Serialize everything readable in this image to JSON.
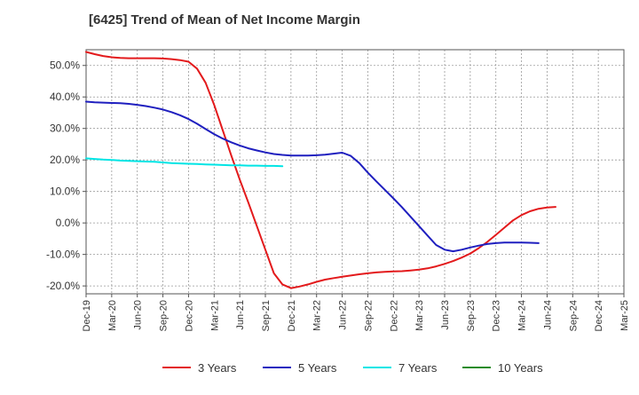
{
  "title": "[6425]  Trend of Mean of Net Income Margin",
  "chart_data": {
    "type": "line",
    "title": "[6425]  Trend of Mean of Net Income Margin",
    "xlabel": "",
    "ylabel": "",
    "x_ticks": [
      "Dec-19",
      "Mar-20",
      "Jun-20",
      "Sep-20",
      "Dec-20",
      "Mar-21",
      "Jun-21",
      "Sep-21",
      "Dec-21",
      "Mar-22",
      "Jun-22",
      "Sep-22",
      "Dec-22",
      "Mar-23",
      "Jun-23",
      "Sep-23",
      "Dec-23",
      "Mar-24",
      "Jun-24",
      "Sep-24",
      "Dec-24",
      "Mar-25"
    ],
    "y_ticks": [
      {
        "value": 50,
        "label": "50.0%"
      },
      {
        "value": 40,
        "label": "40.0%"
      },
      {
        "value": 30,
        "label": "30.0%"
      },
      {
        "value": 20,
        "label": "20.0%"
      },
      {
        "value": 10,
        "label": "10.0%"
      },
      {
        "value": 0,
        "label": "0.0%"
      },
      {
        "value": -10,
        "label": "-10.0%"
      },
      {
        "value": -20,
        "label": "-20.0%"
      }
    ],
    "ylim": [
      -22.5,
      55
    ],
    "grid": true,
    "legend_position": "bottom",
    "series": [
      {
        "name": "3 Years",
        "color": "#e31a1c",
        "points": [
          [
            "Dec-19",
            54.3
          ],
          [
            "Jan-20",
            53.6
          ],
          [
            "Feb-20",
            53.0
          ],
          [
            "Mar-20",
            52.6
          ],
          [
            "Apr-20",
            52.4
          ],
          [
            "May-20",
            52.3
          ],
          [
            "Jun-20",
            52.3
          ],
          [
            "Jul-20",
            52.3
          ],
          [
            "Aug-20",
            52.3
          ],
          [
            "Sep-20",
            52.2
          ],
          [
            "Oct-20",
            52.0
          ],
          [
            "Nov-20",
            51.7
          ],
          [
            "Dec-20",
            51.2
          ],
          [
            "Jan-21",
            49.0
          ],
          [
            "Feb-21",
            44.5
          ],
          [
            "Mar-21",
            37.5
          ],
          [
            "Apr-21",
            29.5
          ],
          [
            "May-21",
            21.5
          ],
          [
            "Jun-21",
            13.8
          ],
          [
            "Jul-21",
            6.5
          ],
          [
            "Aug-21",
            -1.0
          ],
          [
            "Sep-21",
            -8.5
          ],
          [
            "Oct-21",
            -16.0
          ],
          [
            "Nov-21",
            -19.5
          ],
          [
            "Dec-21",
            -20.7
          ],
          [
            "Jan-22",
            -20.2
          ],
          [
            "Feb-22",
            -19.5
          ],
          [
            "Mar-22",
            -18.7
          ],
          [
            "Apr-22",
            -18.0
          ],
          [
            "May-22",
            -17.5
          ],
          [
            "Jun-22",
            -17.1
          ],
          [
            "Jul-22",
            -16.7
          ],
          [
            "Aug-22",
            -16.3
          ],
          [
            "Sep-22",
            -16.0
          ],
          [
            "Oct-22",
            -15.7
          ],
          [
            "Nov-22",
            -15.5
          ],
          [
            "Dec-22",
            -15.4
          ],
          [
            "Jan-23",
            -15.3
          ],
          [
            "Feb-23",
            -15.1
          ],
          [
            "Mar-23",
            -14.8
          ],
          [
            "Apr-23",
            -14.4
          ],
          [
            "May-23",
            -13.8
          ],
          [
            "Jun-23",
            -13.0
          ],
          [
            "Jul-23",
            -12.1
          ],
          [
            "Aug-23",
            -11.0
          ],
          [
            "Sep-23",
            -9.7
          ],
          [
            "Oct-23",
            -8.0
          ],
          [
            "Nov-23",
            -6.0
          ],
          [
            "Dec-23",
            -3.8
          ],
          [
            "Jan-24",
            -1.5
          ],
          [
            "Feb-24",
            0.8
          ],
          [
            "Mar-24",
            2.5
          ],
          [
            "Apr-24",
            3.7
          ],
          [
            "May-24",
            4.5
          ],
          [
            "Jun-24",
            4.9
          ],
          [
            "Jul-24",
            5.1
          ]
        ]
      },
      {
        "name": "5 Years",
        "color": "#1f1fbf",
        "points": [
          [
            "Dec-19",
            38.5
          ],
          [
            "Jan-20",
            38.3
          ],
          [
            "Feb-20",
            38.2
          ],
          [
            "Mar-20",
            38.1
          ],
          [
            "Apr-20",
            38.0
          ],
          [
            "May-20",
            37.8
          ],
          [
            "Jun-20",
            37.5
          ],
          [
            "Jul-20",
            37.1
          ],
          [
            "Aug-20",
            36.6
          ],
          [
            "Sep-20",
            36.0
          ],
          [
            "Oct-20",
            35.2
          ],
          [
            "Nov-20",
            34.2
          ],
          [
            "Dec-20",
            33.0
          ],
          [
            "Jan-21",
            31.5
          ],
          [
            "Feb-21",
            29.8
          ],
          [
            "Mar-21",
            28.2
          ],
          [
            "Apr-21",
            26.8
          ],
          [
            "May-21",
            25.6
          ],
          [
            "Jun-21",
            24.6
          ],
          [
            "Jul-21",
            23.7
          ],
          [
            "Aug-21",
            23.0
          ],
          [
            "Sep-21",
            22.4
          ],
          [
            "Oct-21",
            21.9
          ],
          [
            "Nov-21",
            21.6
          ],
          [
            "Dec-21",
            21.4
          ],
          [
            "Jan-22",
            21.4
          ],
          [
            "Feb-22",
            21.4
          ],
          [
            "Mar-22",
            21.5
          ],
          [
            "Apr-22",
            21.7
          ],
          [
            "May-22",
            22.0
          ],
          [
            "Jun-22",
            22.3
          ],
          [
            "Jul-22",
            21.3
          ],
          [
            "Aug-22",
            19.0
          ],
          [
            "Sep-22",
            16.0
          ],
          [
            "Oct-22",
            13.2
          ],
          [
            "Nov-22",
            10.5
          ],
          [
            "Dec-22",
            7.8
          ],
          [
            "Jan-23",
            5.0
          ],
          [
            "Feb-23",
            2.0
          ],
          [
            "Mar-23",
            -1.0
          ],
          [
            "Apr-23",
            -4.0
          ],
          [
            "May-23",
            -7.0
          ],
          [
            "Jun-23",
            -8.5
          ],
          [
            "Jul-23",
            -9.0
          ],
          [
            "Aug-23",
            -8.5
          ],
          [
            "Sep-23",
            -7.8
          ],
          [
            "Oct-23",
            -7.2
          ],
          [
            "Nov-23",
            -6.7
          ],
          [
            "Dec-23",
            -6.4
          ],
          [
            "Jan-24",
            -6.2
          ],
          [
            "Feb-24",
            -6.2
          ],
          [
            "Mar-24",
            -6.2
          ],
          [
            "Apr-24",
            -6.3
          ],
          [
            "May-24",
            -6.4
          ]
        ]
      },
      {
        "name": "7 Years",
        "color": "#00e5e5",
        "points": [
          [
            "Dec-19",
            20.5
          ],
          [
            "Jan-20",
            20.3
          ],
          [
            "Feb-20",
            20.1
          ],
          [
            "Mar-20",
            20.0
          ],
          [
            "Apr-20",
            19.8
          ],
          [
            "May-20",
            19.7
          ],
          [
            "Jun-20",
            19.6
          ],
          [
            "Jul-20",
            19.5
          ],
          [
            "Aug-20",
            19.4
          ],
          [
            "Sep-20",
            19.2
          ],
          [
            "Oct-20",
            19.0
          ],
          [
            "Nov-20",
            18.9
          ],
          [
            "Dec-20",
            18.8
          ],
          [
            "Jan-21",
            18.7
          ],
          [
            "Feb-21",
            18.6
          ],
          [
            "Mar-21",
            18.5
          ],
          [
            "Apr-21",
            18.4
          ],
          [
            "May-21",
            18.3
          ],
          [
            "Jun-21",
            18.3
          ],
          [
            "Jul-21",
            18.2
          ],
          [
            "Aug-21",
            18.2
          ],
          [
            "Sep-21",
            18.1
          ],
          [
            "Oct-21",
            18.1
          ],
          [
            "Nov-21",
            18.0
          ]
        ]
      },
      {
        "name": "10 Years",
        "color": "#228b22",
        "points": []
      }
    ]
  }
}
